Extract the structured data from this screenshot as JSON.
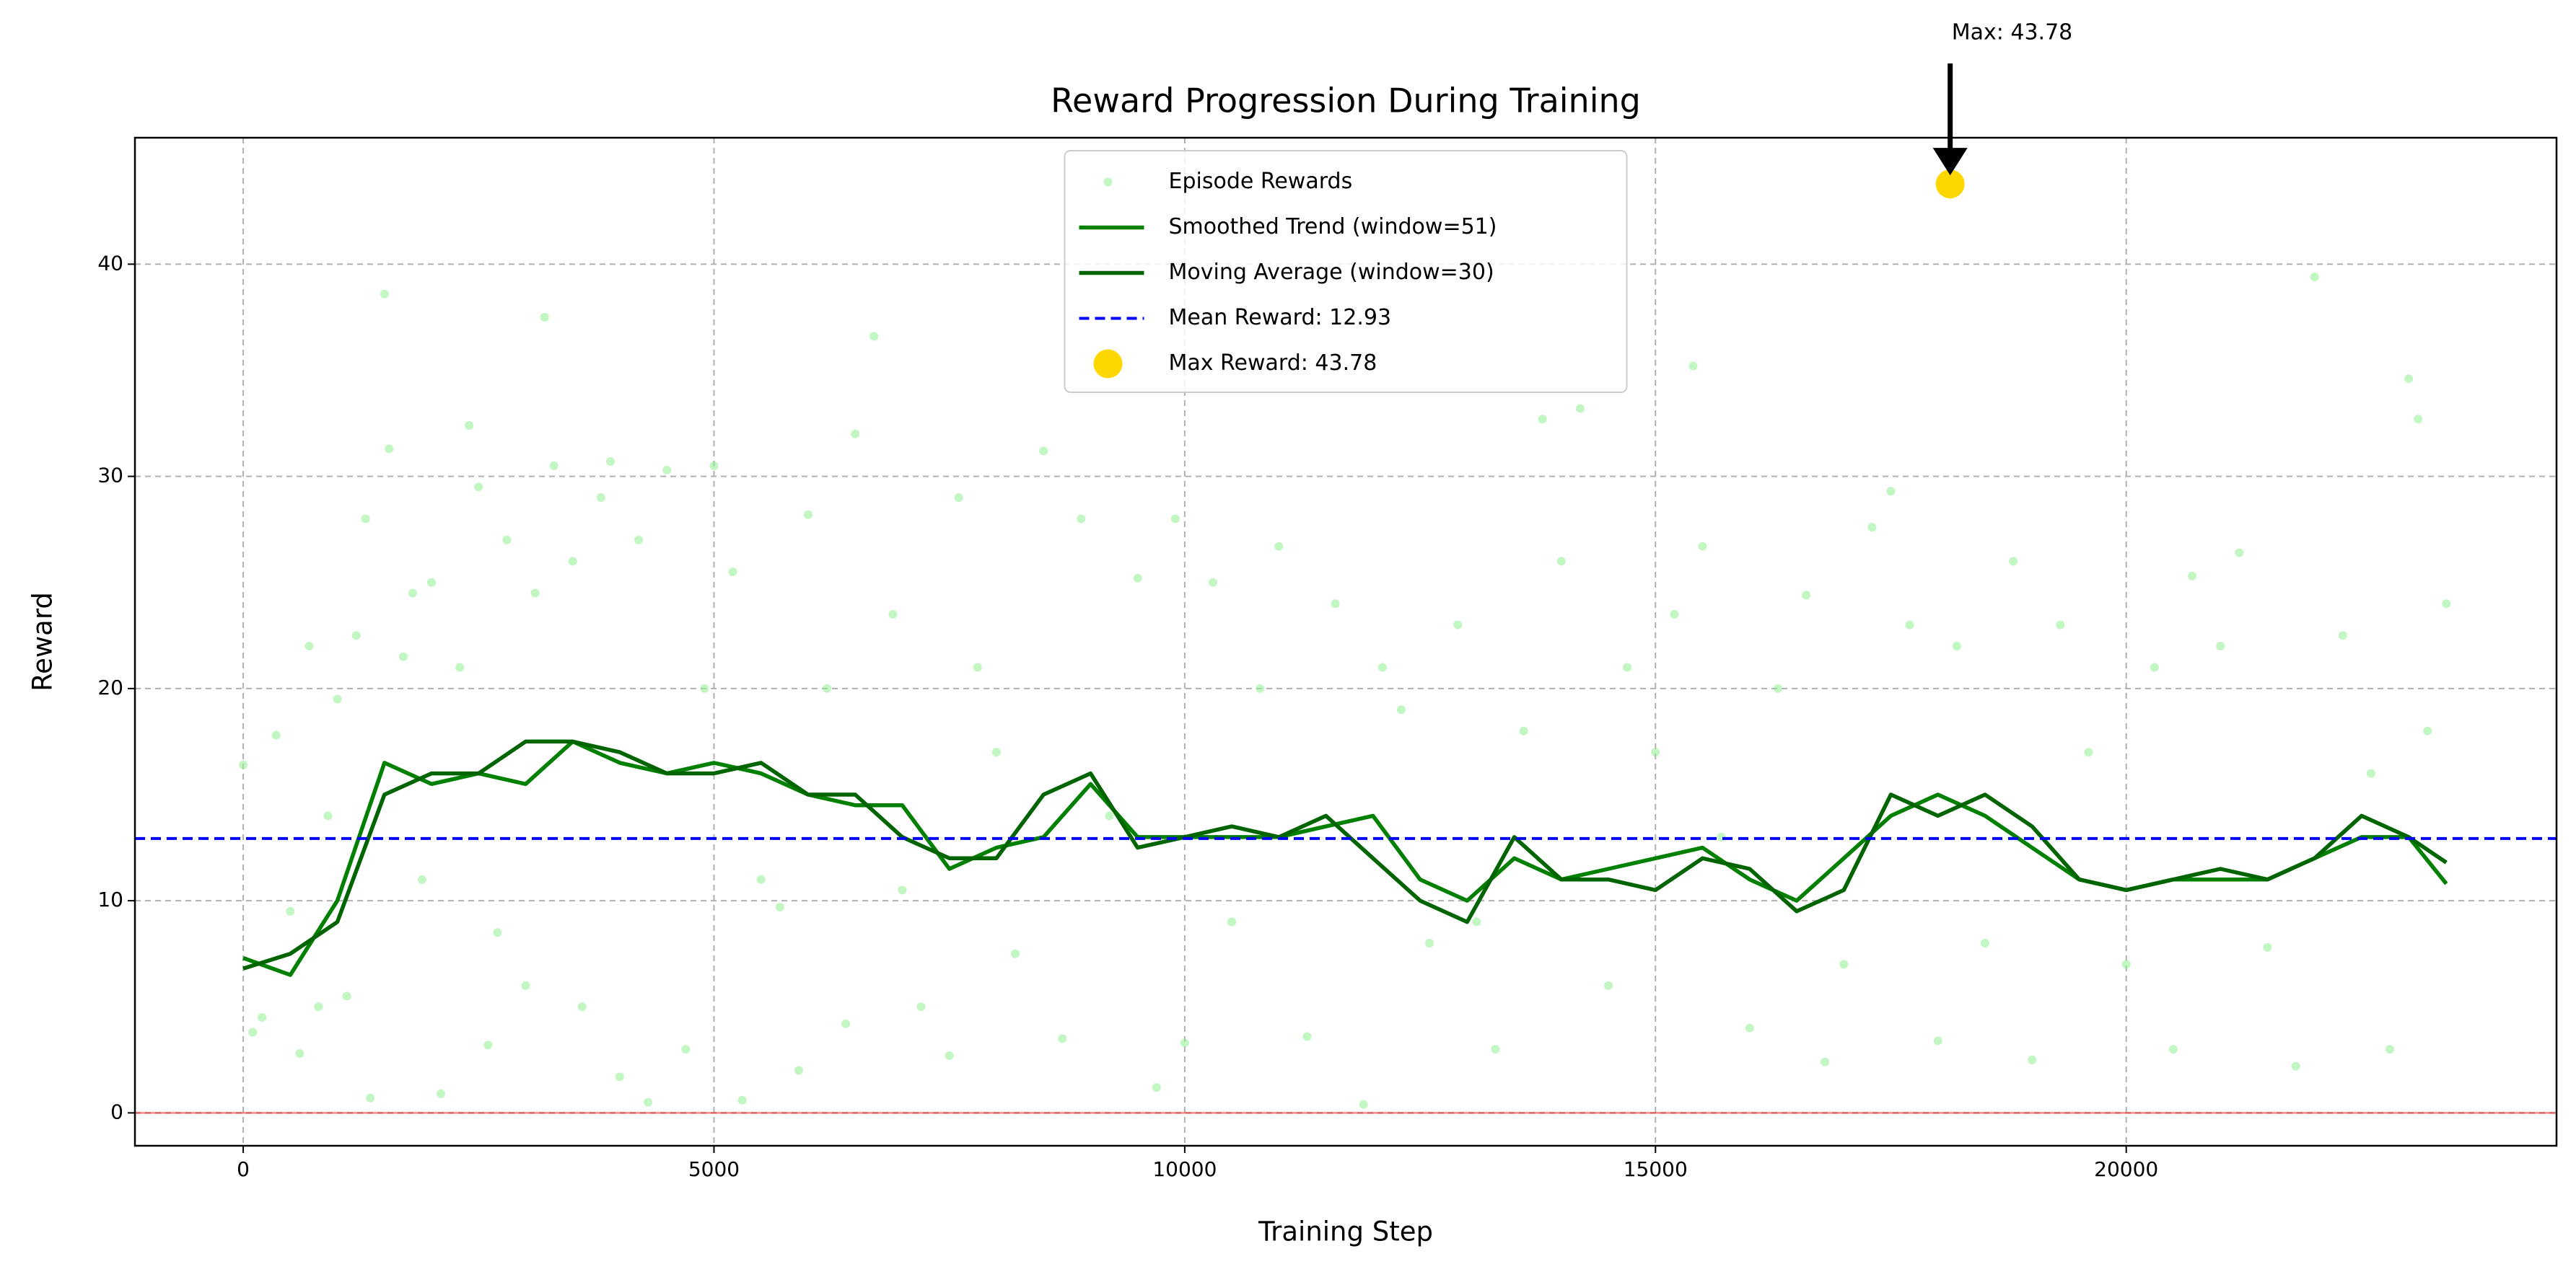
{
  "chart_data": {
    "type": "line",
    "title": "Reward Progression During Training",
    "x_label": "Training Step",
    "y_label": "Reward",
    "xlim": [
      -1150,
      24570
    ],
    "ylim": [
      -1.55,
      45.96
    ],
    "xticks": [
      0,
      5000,
      10000,
      15000,
      20000
    ],
    "yticks": [
      0,
      10,
      20,
      30,
      40
    ],
    "grid": true,
    "legend": "upper center",
    "series": [
      {
        "name": "Episode Rewards",
        "style": "scatter",
        "color": "#90ee90",
        "x": [
          0,
          100,
          200,
          350,
          500,
          600,
          700,
          800,
          900,
          1000,
          1100,
          1200,
          1300,
          1350,
          1500,
          1550,
          1700,
          1800,
          1900,
          2000,
          2100,
          2300,
          2400,
          2500,
          2600,
          2700,
          2800,
          3000,
          3100,
          3200,
          3300,
          3500,
          3600,
          3800,
          3900,
          4000,
          4200,
          4300,
          4500,
          4700,
          4900,
          5000,
          5200,
          5300,
          5500,
          5700,
          5900,
          6000,
          6200,
          6400,
          6500,
          6700,
          6900,
          7000,
          7200,
          7500,
          7600,
          7800,
          8000,
          8200,
          8500,
          8700,
          8900,
          9200,
          9500,
          9700,
          9900,
          10000,
          10300,
          10500,
          10800,
          11000,
          11300,
          11600,
          11900,
          12100,
          12300,
          12600,
          12900,
          13100,
          13300,
          13600,
          13800,
          14000,
          14200,
          14500,
          14700,
          15000,
          15200,
          15400,
          15500,
          15700,
          16000,
          16300,
          16600,
          16800,
          17000,
          17300,
          17500,
          17700,
          18000,
          18200,
          18500,
          18800,
          19000,
          19300,
          19600,
          20000,
          20300,
          20500,
          20700,
          21000,
          21200,
          21500,
          21800,
          22000,
          22300,
          22600,
          22800,
          23000,
          23100,
          23200,
          23400
        ],
        "values": [
          16.4,
          3.8,
          4.5,
          17.8,
          9.5,
          2.8,
          22,
          5,
          14,
          19.5,
          5.5,
          22.5,
          28,
          0.7,
          38.6,
          31.3,
          21.5,
          24.5,
          11,
          25,
          0.9,
          21,
          32.4,
          29.5,
          3.2,
          8.5,
          27,
          6,
          24.5,
          37.5,
          30.5,
          26,
          5,
          29,
          30.7,
          1.7,
          27,
          0.5,
          30.3,
          3,
          20,
          30.5,
          25.5,
          0.6,
          11,
          9.7,
          2,
          28.2,
          20,
          4.2,
          32,
          36.6,
          23.5,
          10.5,
          5,
          2.7,
          29,
          21,
          17,
          7.5,
          31.2,
          3.5,
          28,
          14,
          25.2,
          1.2,
          28,
          3.3,
          25,
          9,
          20,
          26.7,
          3.6,
          24,
          0.4,
          21,
          19,
          8,
          23,
          9,
          3,
          18,
          32.7,
          26,
          33.2,
          6,
          21,
          17,
          23.5,
          35.2,
          26.7,
          13,
          4,
          20,
          24.4,
          2.4,
          7,
          27.6,
          29.3,
          23,
          3.4,
          22,
          8,
          26,
          2.5,
          23,
          17,
          7,
          21,
          3,
          25.3,
          22,
          26.4,
          7.8,
          2.2,
          39.4,
          22.5,
          16,
          3,
          34.6,
          32.7,
          18,
          24
        ]
      },
      {
        "name": "Smoothed Trend (window=51)",
        "style": "line",
        "color": "#008000",
        "x": [
          0,
          500,
          1000,
          1500,
          2000,
          2500,
          3000,
          3500,
          4000,
          4500,
          5000,
          5500,
          6000,
          6500,
          7000,
          7500,
          8000,
          8500,
          9000,
          9500,
          10000,
          10500,
          11000,
          11500,
          12000,
          12500,
          13000,
          13500,
          14000,
          14500,
          15000,
          15500,
          16000,
          16500,
          17000,
          17500,
          18000,
          18500,
          19000,
          19500,
          20000,
          20500,
          21000,
          21500,
          22000,
          22500,
          23000,
          23400
        ],
        "values": [
          7.3,
          6.5,
          10,
          16.5,
          15.5,
          16,
          15.5,
          17.5,
          16.5,
          16,
          16.5,
          16,
          15,
          14.5,
          14.5,
          11.5,
          12.5,
          13,
          15.5,
          13,
          13,
          13,
          13,
          13.5,
          14,
          11,
          10,
          12,
          11,
          11.5,
          12,
          12.5,
          11,
          10,
          12,
          14,
          15,
          14,
          12.5,
          11,
          10.5,
          11,
          11,
          11,
          12,
          13,
          13,
          10.8
        ]
      },
      {
        "name": "Moving Average (window=30)",
        "style": "line",
        "color": "#006400",
        "x": [
          0,
          500,
          1000,
          1500,
          2000,
          2500,
          3000,
          3500,
          4000,
          4500,
          5000,
          5500,
          6000,
          6500,
          7000,
          7500,
          8000,
          8500,
          9000,
          9500,
          10000,
          10500,
          11000,
          11500,
          12000,
          12500,
          13000,
          13500,
          14000,
          14500,
          15000,
          15500,
          16000,
          16500,
          17000,
          17500,
          18000,
          18500,
          19000,
          19500,
          20000,
          20500,
          21000,
          21500,
          22000,
          22500,
          23000,
          23400
        ],
        "values": [
          6.8,
          7.5,
          9,
          15,
          16,
          16,
          17.5,
          17.5,
          17,
          16,
          16,
          16.5,
          15,
          15,
          13,
          12,
          12,
          15,
          16,
          12.5,
          13,
          13.5,
          13,
          14,
          12,
          10,
          9,
          13,
          11,
          11,
          10.5,
          12,
          11.5,
          9.5,
          10.5,
          15,
          14,
          15,
          13.5,
          11,
          10.5,
          11,
          11.5,
          11,
          12,
          14,
          13,
          11.8
        ]
      },
      {
        "name": "Mean Reward: 12.93",
        "style": "hline",
        "color": "#0000ff",
        "value": 12.93
      },
      {
        "name": "Max Reward: 43.78",
        "style": "point",
        "color": "#ffd700",
        "x": 18130,
        "value": 43.78
      }
    ],
    "reference_line": {
      "value": 0,
      "color": "#ff0000"
    },
    "annotation": {
      "text": "Max: 43.78"
    }
  }
}
